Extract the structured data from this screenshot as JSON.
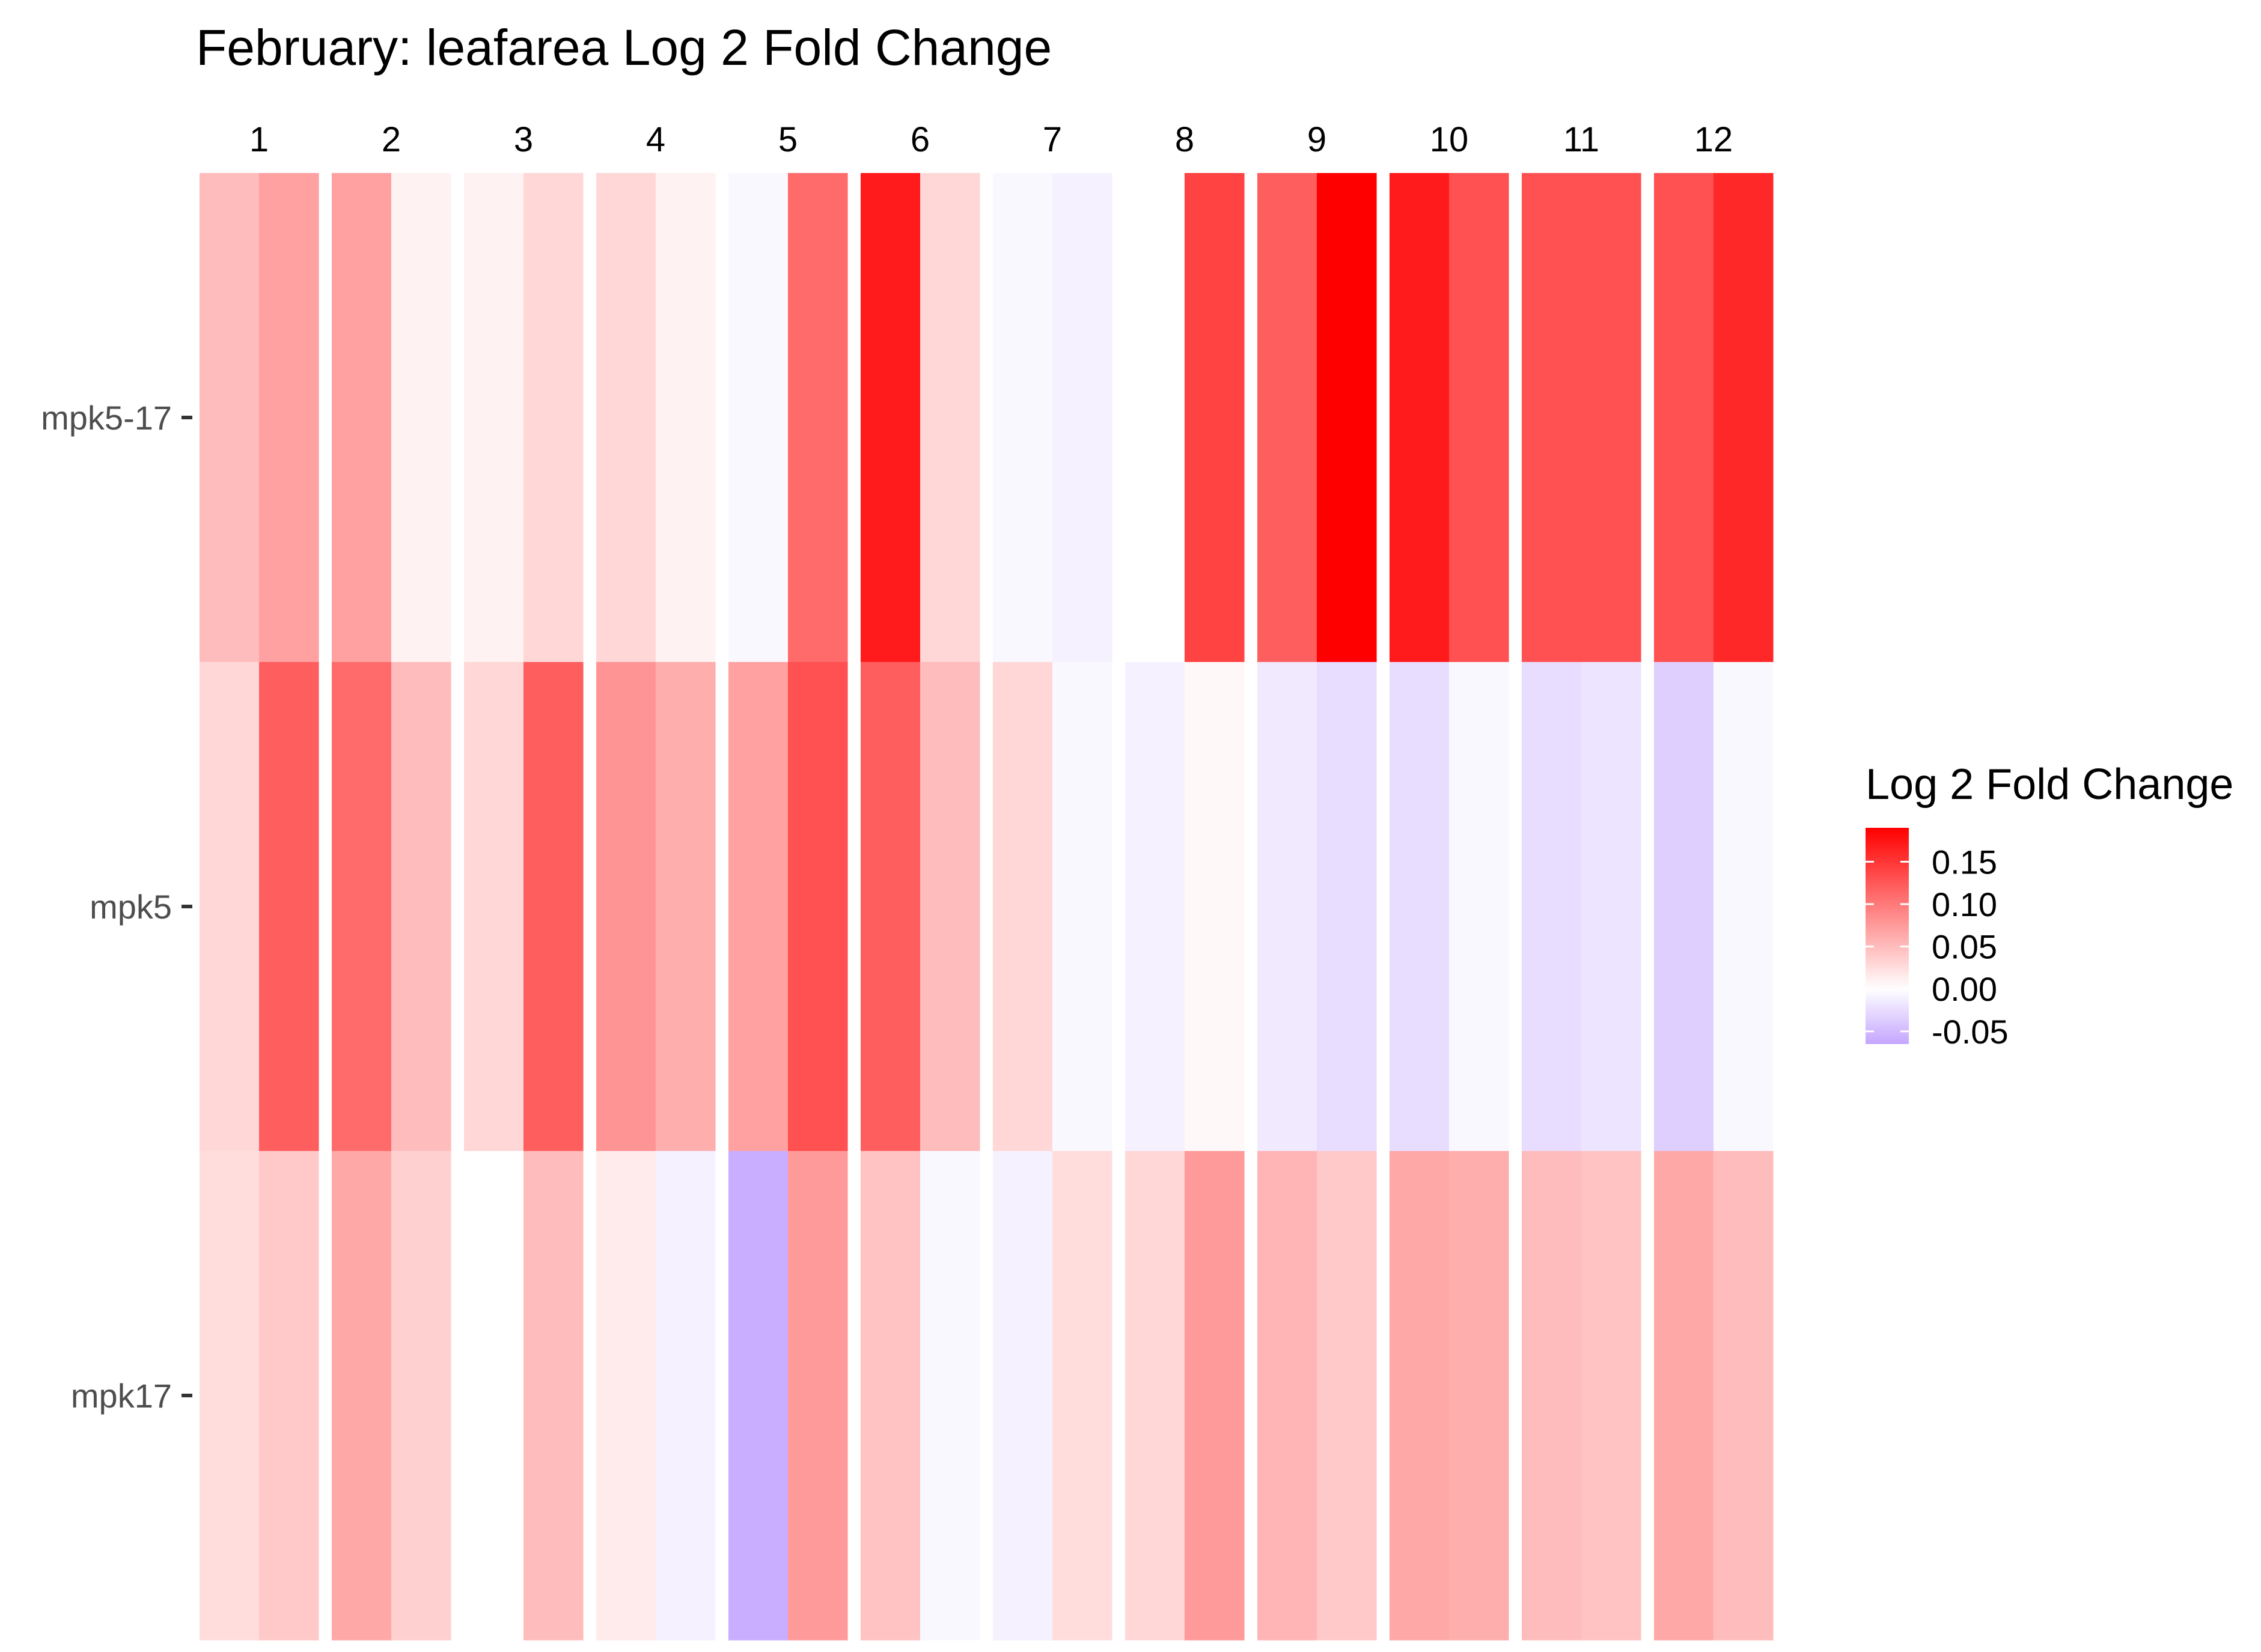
{
  "chart_data": {
    "type": "heatmap",
    "title": "February: leafarea Log 2 Fold Change",
    "column_groups": [
      "1",
      "2",
      "3",
      "4",
      "5",
      "6",
      "7",
      "8",
      "9",
      "10",
      "11",
      "12"
    ],
    "sub_columns_per_group": 2,
    "rows": [
      "mpk5-17",
      "mpk5",
      "mpk17"
    ],
    "values": [
      [
        0.05,
        0.07,
        0.07,
        0.01,
        0.01,
        0.03,
        0.03,
        0.01,
        -0.005,
        0.11,
        0.17,
        0.03,
        -0.005,
        -0.01,
        0.0,
        0.14,
        0.12,
        0.19,
        0.17,
        0.13,
        0.13,
        0.13,
        0.13,
        0.16
      ],
      [
        0.03,
        0.12,
        0.11,
        0.05,
        0.03,
        0.12,
        0.08,
        0.06,
        0.07,
        0.13,
        0.12,
        0.05,
        0.03,
        -0.005,
        -0.01,
        0.005,
        -0.015,
        -0.025,
        -0.025,
        -0.005,
        -0.025,
        -0.02,
        -0.035,
        -0.005
      ],
      [
        0.025,
        0.04,
        0.065,
        0.035,
        0.0,
        0.05,
        0.015,
        -0.01,
        -0.06,
        0.075,
        0.045,
        -0.005,
        -0.01,
        0.025,
        0.03,
        0.075,
        0.055,
        0.04,
        0.065,
        0.06,
        0.05,
        0.045,
        0.065,
        0.05
      ]
    ],
    "color_scale": {
      "low_color": "#c4a6ff",
      "mid_color": "#ffffff",
      "high_color": "#ff0000",
      "min": -0.065,
      "mid": 0.0,
      "max": 0.19
    },
    "legend": {
      "title": "Log 2 Fold Change",
      "position": "right",
      "tick_labels": [
        "0.15",
        "0.10",
        "0.05",
        "0.00",
        "-0.05"
      ],
      "tick_values": [
        0.15,
        0.1,
        0.05,
        0.0,
        -0.05
      ]
    },
    "grid": false
  }
}
